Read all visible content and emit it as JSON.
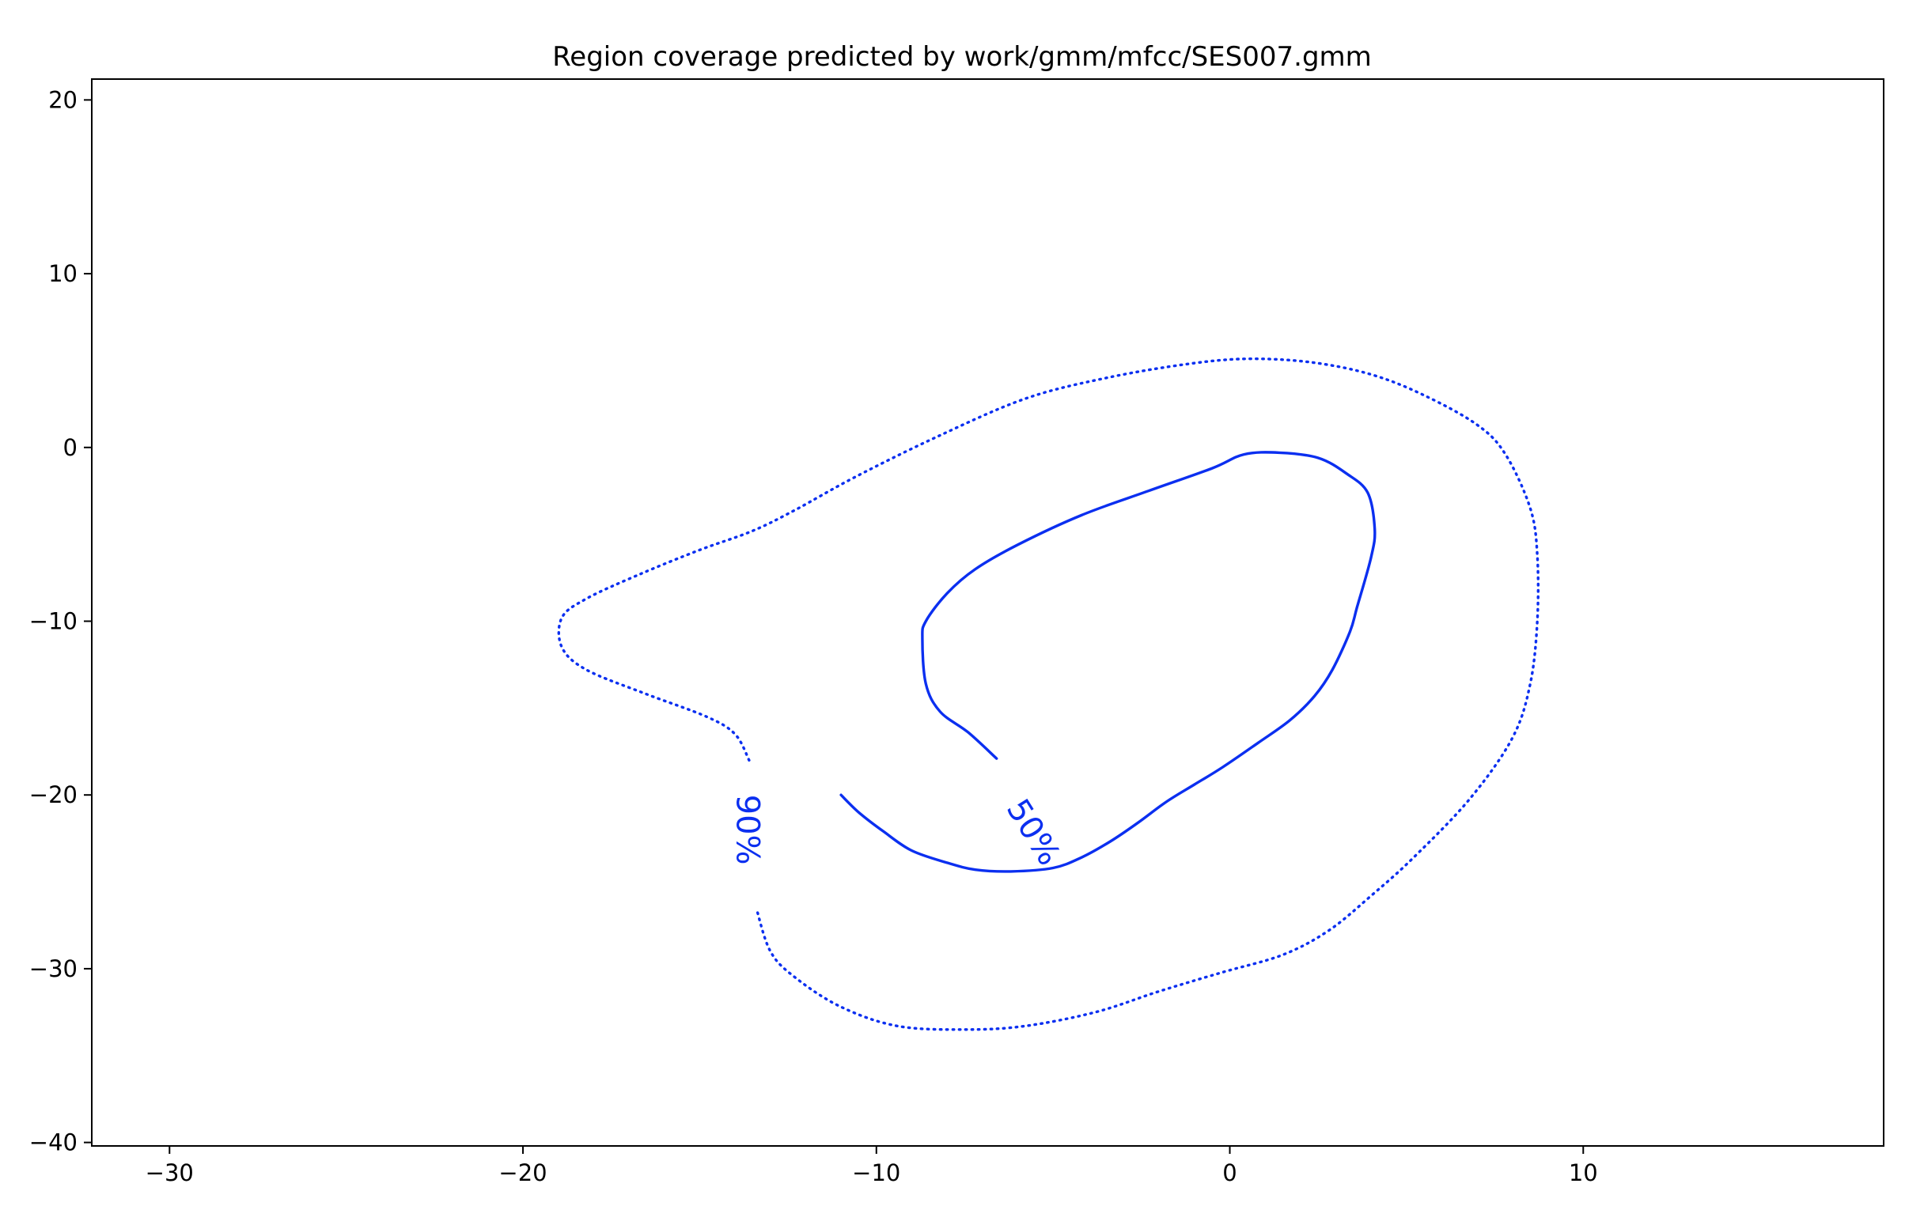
{
  "chart_data": {
    "type": "contour",
    "title": "Region coverage predicted by work/gmm/mfcc/SES007.gmm",
    "xlabel": "",
    "ylabel": "",
    "xlim": [
      -32.2,
      18.5
    ],
    "ylim": [
      -40.2,
      21.2
    ],
    "xticks": [
      -30,
      -20,
      -10,
      0,
      10
    ],
    "yticks": [
      20,
      10,
      0,
      -10,
      -20,
      -30,
      -40
    ],
    "xtick_labels": [
      "−30",
      "−20",
      "−10",
      "0",
      "10"
    ],
    "ytick_labels": [
      "20",
      "10",
      "0",
      "−10",
      "−20",
      "−30",
      "−40"
    ],
    "grid": false,
    "legend": false,
    "color": "#0b2ff0",
    "series": [
      {
        "label": "50%",
        "linestyle": "solid",
        "label_pos": [
          -5.6,
          -22.2
        ],
        "label_rotation_deg": 58,
        "points": [
          [
            -6.6,
            -17.9
          ],
          [
            -7.4,
            -16.4
          ],
          [
            -8.2,
            -15.2
          ],
          [
            -8.6,
            -13.6
          ],
          [
            -8.7,
            -11.0
          ],
          [
            -8.6,
            -10.0
          ],
          [
            -8.0,
            -8.4
          ],
          [
            -7.2,
            -7.0
          ],
          [
            -6.0,
            -5.6
          ],
          [
            -4.2,
            -3.9
          ],
          [
            -2.3,
            -2.5
          ],
          [
            -0.5,
            -1.2
          ],
          [
            0.4,
            -0.4
          ],
          [
            1.4,
            -0.3
          ],
          [
            2.5,
            -0.6
          ],
          [
            3.3,
            -1.5
          ],
          [
            3.9,
            -2.6
          ],
          [
            4.1,
            -4.7
          ],
          [
            4.0,
            -6.3
          ],
          [
            3.6,
            -9.2
          ],
          [
            3.4,
            -10.6
          ],
          [
            2.9,
            -12.8
          ],
          [
            2.4,
            -14.3
          ],
          [
            1.7,
            -15.7
          ],
          [
            0.8,
            -17.0
          ],
          [
            -0.2,
            -18.4
          ],
          [
            -1.0,
            -19.4
          ],
          [
            -1.8,
            -20.4
          ],
          [
            -2.6,
            -21.6
          ],
          [
            -3.4,
            -22.7
          ],
          [
            -4.2,
            -23.6
          ],
          [
            -5.0,
            -24.2
          ],
          [
            -6.2,
            -24.4
          ],
          [
            -7.2,
            -24.3
          ],
          [
            -8.0,
            -23.9
          ],
          [
            -9.0,
            -23.2
          ],
          [
            -9.8,
            -22.1
          ],
          [
            -10.5,
            -21.0
          ],
          [
            -11.0,
            -20.0
          ]
        ]
      },
      {
        "label": "90%",
        "linestyle": "dotted",
        "label_pos": [
          -13.7,
          -22.0
        ],
        "label_rotation_deg": 90,
        "points": [
          [
            -13.6,
            -18.0
          ],
          [
            -14.0,
            -16.5
          ],
          [
            -14.8,
            -15.5
          ],
          [
            -16.5,
            -14.2
          ],
          [
            -18.2,
            -12.8
          ],
          [
            -18.9,
            -11.5
          ],
          [
            -18.9,
            -9.8
          ],
          [
            -18.2,
            -8.7
          ],
          [
            -16.7,
            -7.3
          ],
          [
            -15.0,
            -5.9
          ],
          [
            -13.5,
            -4.8
          ],
          [
            -12.3,
            -3.6
          ],
          [
            -10.6,
            -1.7
          ],
          [
            -8.3,
            0.6
          ],
          [
            -5.8,
            2.8
          ],
          [
            -3.5,
            4.0
          ],
          [
            -1.2,
            4.8
          ],
          [
            0.5,
            5.1
          ],
          [
            2.3,
            4.9
          ],
          [
            4.0,
            4.2
          ],
          [
            5.5,
            3.0
          ],
          [
            7.0,
            1.3
          ],
          [
            7.8,
            -0.4
          ],
          [
            8.5,
            -3.5
          ],
          [
            8.7,
            -6.2
          ],
          [
            8.7,
            -10.0
          ],
          [
            8.5,
            -13.6
          ],
          [
            8.0,
            -16.7
          ],
          [
            6.8,
            -20.2
          ],
          [
            5.2,
            -23.6
          ],
          [
            4.0,
            -25.8
          ],
          [
            2.8,
            -27.8
          ],
          [
            1.5,
            -29.2
          ],
          [
            -0.2,
            -30.2
          ],
          [
            -2.0,
            -31.3
          ],
          [
            -3.8,
            -32.5
          ],
          [
            -5.8,
            -33.3
          ],
          [
            -7.5,
            -33.5
          ],
          [
            -9.4,
            -33.3
          ],
          [
            -11.0,
            -32.2
          ],
          [
            -12.3,
            -30.5
          ],
          [
            -13.0,
            -29.0
          ],
          [
            -13.4,
            -26.5
          ]
        ]
      }
    ]
  }
}
